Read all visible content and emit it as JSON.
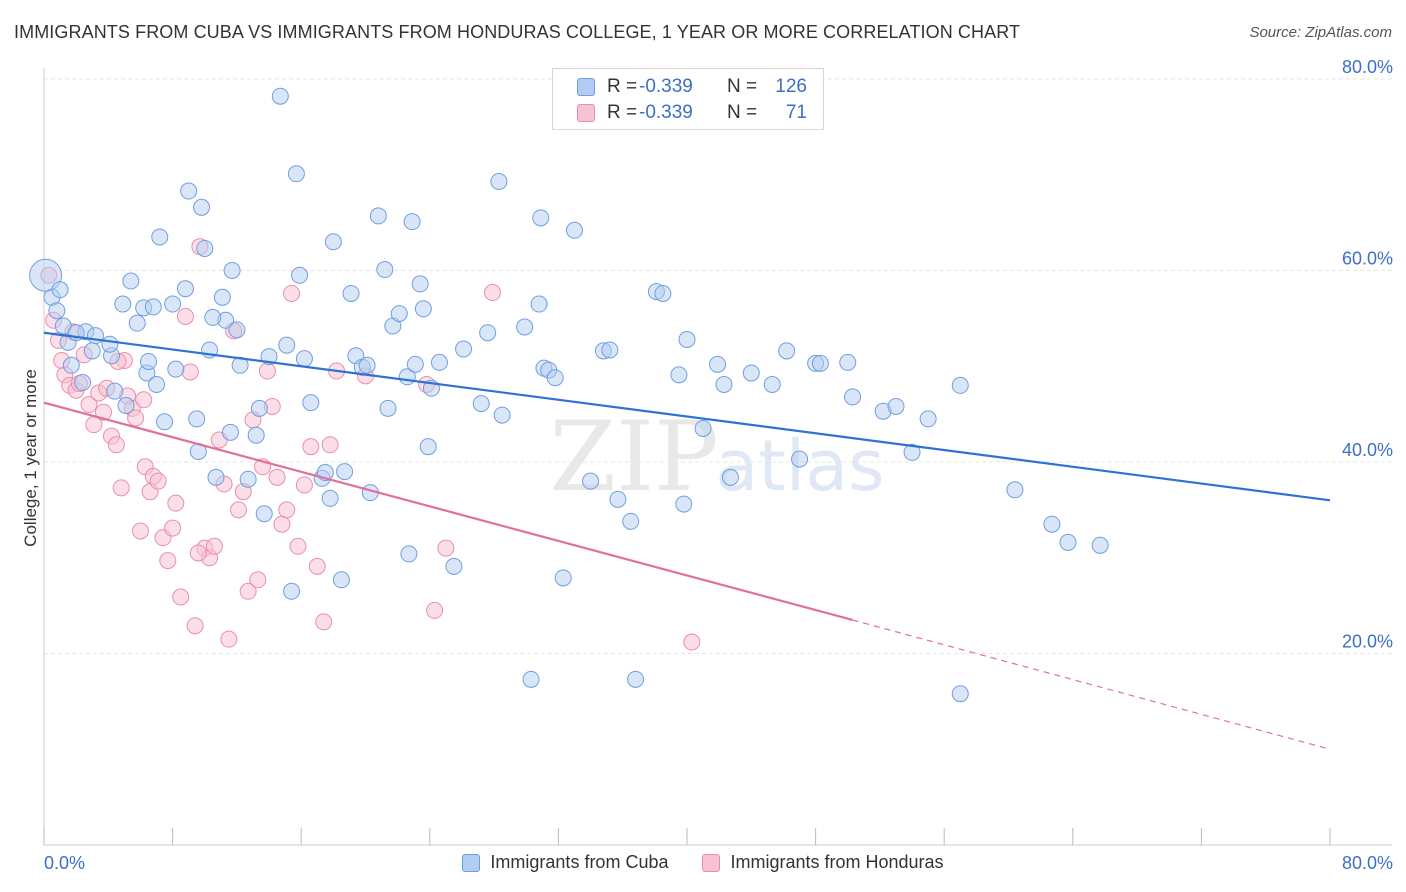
{
  "header": {
    "title": "IMMIGRANTS FROM CUBA VS IMMIGRANTS FROM HONDURAS COLLEGE, 1 YEAR OR MORE CORRELATION CHART",
    "source": "Source: ZipAtlas.com"
  },
  "stats_legend": {
    "rows": [
      {
        "r_label": "R =",
        "r_value": "-0.339",
        "n_label": "N =",
        "n_value": "126"
      },
      {
        "r_label": "R =",
        "r_value": "-0.339",
        "n_label": "N =",
        "n_value": "71"
      }
    ]
  },
  "watermark": {
    "zip": "ZIP",
    "atlas": "atlas"
  },
  "chart_data": {
    "type": "scatter",
    "title": "IMMIGRANTS FROM CUBA VS IMMIGRANTS FROM HONDURAS COLLEGE, 1 YEAR OR MORE CORRELATION CHART",
    "xlabel": "",
    "ylabel": "College, 1 year or more",
    "xlim": [
      0,
      80
    ],
    "ylim": [
      0,
      80
    ],
    "x_tick_labels": [
      "0.0%",
      "80.0%"
    ],
    "y_ticks": [
      20,
      40,
      60,
      80
    ],
    "y_tick_labels": [
      "20.0%",
      "40.0%",
      "60.0%",
      "80.0%"
    ],
    "grid": true,
    "legend_position": "bottom",
    "colors": {
      "cuba_fill": "#b3cdf2",
      "cuba_stroke": "#6f9fe0",
      "cuba_line": "#2f72d4",
      "honduras_fill": "#f7c3d3",
      "honduras_stroke": "#ea8fab",
      "honduras_line": "#e0709a",
      "tick_label": "#3d6fc4"
    },
    "series": [
      {
        "name": "Immigrants from Cuba",
        "trend": {
          "x0": 0,
          "y0": 53.5,
          "x1": 80,
          "y1": 36
        },
        "points": [
          [
            0.1,
            59.5
          ],
          [
            0.5,
            57.2
          ],
          [
            0.8,
            55.8
          ],
          [
            1.2,
            54.2
          ],
          [
            1.5,
            52.5
          ],
          [
            2.6,
            53.6
          ],
          [
            3.2,
            53.2
          ],
          [
            1.7,
            50.1
          ],
          [
            3.0,
            51.6
          ],
          [
            4.2,
            51.1
          ],
          [
            2.0,
            53.5
          ],
          [
            4.1,
            52.3
          ],
          [
            2.4,
            48.3
          ],
          [
            4.4,
            47.4
          ],
          [
            5.1,
            45.9
          ],
          [
            6.4,
            49.3
          ],
          [
            4.9,
            56.5
          ],
          [
            5.4,
            58.9
          ],
          [
            5.8,
            54.5
          ],
          [
            6.2,
            56.1
          ],
          [
            6.8,
            56.2
          ],
          [
            7.0,
            48.1
          ],
          [
            7.5,
            44.2
          ],
          [
            8.0,
            56.5
          ],
          [
            8.8,
            58.1
          ],
          [
            8.2,
            49.7
          ],
          [
            9.5,
            44.5
          ],
          [
            9.6,
            41.1
          ],
          [
            10.0,
            62.3
          ],
          [
            10.3,
            51.7
          ],
          [
            10.7,
            38.4
          ],
          [
            11.1,
            57.2
          ],
          [
            11.3,
            54.8
          ],
          [
            11.6,
            43.1
          ],
          [
            12.0,
            53.8
          ],
          [
            12.2,
            50.1
          ],
          [
            12.7,
            38.2
          ],
          [
            13.2,
            42.8
          ],
          [
            13.4,
            45.6
          ],
          [
            13.7,
            34.6
          ],
          [
            14.0,
            51.0
          ],
          [
            14.7,
            78.2
          ],
          [
            15.1,
            52.2
          ],
          [
            15.4,
            26.5
          ],
          [
            15.7,
            70.1
          ],
          [
            15.9,
            59.5
          ],
          [
            16.2,
            50.8
          ],
          [
            16.6,
            46.2
          ],
          [
            17.3,
            38.3
          ],
          [
            17.5,
            38.9
          ],
          [
            17.8,
            36.2
          ],
          [
            18.0,
            63.0
          ],
          [
            18.5,
            27.7
          ],
          [
            18.7,
            39.0
          ],
          [
            19.1,
            57.6
          ],
          [
            19.4,
            51.1
          ],
          [
            19.8,
            49.9
          ],
          [
            20.1,
            50.1
          ],
          [
            20.3,
            36.8
          ],
          [
            20.8,
            65.7
          ],
          [
            21.2,
            60.1
          ],
          [
            21.4,
            45.6
          ],
          [
            21.7,
            54.2
          ],
          [
            22.1,
            55.5
          ],
          [
            22.6,
            48.9
          ],
          [
            22.9,
            65.1
          ],
          [
            22.7,
            30.4
          ],
          [
            23.1,
            50.2
          ],
          [
            23.4,
            58.6
          ],
          [
            23.6,
            56.0
          ],
          [
            23.9,
            41.6
          ],
          [
            24.1,
            47.7
          ],
          [
            24.6,
            50.4
          ],
          [
            25.5,
            29.1
          ],
          [
            26.1,
            51.8
          ],
          [
            27.2,
            46.1
          ],
          [
            27.6,
            53.5
          ],
          [
            28.3,
            69.3
          ],
          [
            28.5,
            44.9
          ],
          [
            29.9,
            54.1
          ],
          [
            30.3,
            17.3
          ],
          [
            30.8,
            56.5
          ],
          [
            30.9,
            65.5
          ],
          [
            31.1,
            49.8
          ],
          [
            31.4,
            49.6
          ],
          [
            31.8,
            48.8
          ],
          [
            32.3,
            27.9
          ],
          [
            33.0,
            64.2
          ],
          [
            34.0,
            38.0
          ],
          [
            34.8,
            51.6
          ],
          [
            35.2,
            51.7
          ],
          [
            35.7,
            36.1
          ],
          [
            36.5,
            33.8
          ],
          [
            36.8,
            17.3
          ],
          [
            38.1,
            57.8
          ],
          [
            38.5,
            57.6
          ],
          [
            39.5,
            49.1
          ],
          [
            39.8,
            35.6
          ],
          [
            40.0,
            52.8
          ],
          [
            41.0,
            43.5
          ],
          [
            41.9,
            50.2
          ],
          [
            42.3,
            48.1
          ],
          [
            42.7,
            38.4
          ],
          [
            44.0,
            49.3
          ],
          [
            45.3,
            48.1
          ],
          [
            46.2,
            51.6
          ],
          [
            47.0,
            40.3
          ],
          [
            48.0,
            50.3
          ],
          [
            48.3,
            50.3
          ],
          [
            50.0,
            50.4
          ],
          [
            50.3,
            46.8
          ],
          [
            52.2,
            45.3
          ],
          [
            53.0,
            45.8
          ],
          [
            54.0,
            41.0
          ],
          [
            55.0,
            44.5
          ],
          [
            57.0,
            48.0
          ],
          [
            57.0,
            15.8
          ],
          [
            60.4,
            37.1
          ],
          [
            62.7,
            33.5
          ],
          [
            63.7,
            31.6
          ],
          [
            65.7,
            31.3
          ],
          [
            1.0,
            58.0
          ],
          [
            6.5,
            50.5
          ],
          [
            9.0,
            68.3
          ],
          [
            10.5,
            55.1
          ],
          [
            11.7,
            60.0
          ],
          [
            9.8,
            66.6
          ],
          [
            7.2,
            63.5
          ]
        ]
      },
      {
        "name": "Immigrants from Honduras",
        "trend": {
          "x0": 0,
          "y0": 46.2,
          "x1": 50.3,
          "y1": 23.5
        },
        "trend_extrapolated": {
          "x0": 50.3,
          "y0": 23.5,
          "x1": 80,
          "y1": 10
        },
        "points": [
          [
            0.3,
            59.5
          ],
          [
            0.6,
            54.8
          ],
          [
            0.9,
            52.7
          ],
          [
            1.1,
            50.6
          ],
          [
            1.3,
            49.1
          ],
          [
            1.6,
            48.0
          ],
          [
            1.8,
            53.6
          ],
          [
            2.0,
            47.5
          ],
          [
            2.2,
            48.2
          ],
          [
            2.5,
            51.2
          ],
          [
            2.8,
            46.0
          ],
          [
            3.1,
            43.9
          ],
          [
            3.4,
            47.2
          ],
          [
            3.7,
            45.2
          ],
          [
            3.9,
            47.7
          ],
          [
            4.2,
            42.7
          ],
          [
            4.5,
            41.8
          ],
          [
            4.8,
            37.3
          ],
          [
            5.0,
            50.6
          ],
          [
            5.2,
            46.9
          ],
          [
            5.5,
            45.6
          ],
          [
            5.7,
            44.6
          ],
          [
            6.0,
            32.8
          ],
          [
            6.3,
            39.5
          ],
          [
            6.6,
            36.9
          ],
          [
            6.8,
            38.5
          ],
          [
            7.1,
            38.0
          ],
          [
            7.4,
            32.1
          ],
          [
            7.7,
            29.7
          ],
          [
            8.0,
            33.1
          ],
          [
            8.2,
            35.7
          ],
          [
            8.5,
            25.9
          ],
          [
            8.8,
            55.2
          ],
          [
            9.1,
            49.4
          ],
          [
            9.4,
            22.9
          ],
          [
            9.7,
            62.5
          ],
          [
            10.0,
            31.0
          ],
          [
            10.3,
            30.0
          ],
          [
            10.6,
            31.2
          ],
          [
            10.9,
            42.3
          ],
          [
            11.2,
            37.7
          ],
          [
            11.5,
            21.5
          ],
          [
            11.8,
            53.7
          ],
          [
            12.1,
            35.0
          ],
          [
            12.4,
            36.9
          ],
          [
            12.7,
            26.5
          ],
          [
            13.0,
            44.4
          ],
          [
            13.3,
            27.7
          ],
          [
            13.6,
            39.5
          ],
          [
            13.9,
            49.5
          ],
          [
            14.2,
            45.8
          ],
          [
            14.5,
            38.4
          ],
          [
            14.8,
            33.5
          ],
          [
            15.1,
            35.0
          ],
          [
            15.4,
            57.6
          ],
          [
            15.8,
            31.2
          ],
          [
            16.2,
            37.6
          ],
          [
            16.6,
            41.6
          ],
          [
            17.0,
            29.1
          ],
          [
            17.4,
            23.3
          ],
          [
            17.8,
            41.8
          ],
          [
            18.2,
            49.5
          ],
          [
            20.0,
            49.0
          ],
          [
            23.8,
            48.1
          ],
          [
            24.3,
            24.5
          ],
          [
            25.0,
            31.0
          ],
          [
            27.9,
            57.7
          ],
          [
            40.3,
            21.2
          ],
          [
            4.6,
            50.5
          ],
          [
            9.6,
            30.5
          ],
          [
            6.2,
            46.5
          ]
        ]
      }
    ]
  },
  "legend": {
    "items": [
      {
        "label": "Immigrants from Cuba"
      },
      {
        "label": "Immigrants from Honduras"
      }
    ]
  }
}
